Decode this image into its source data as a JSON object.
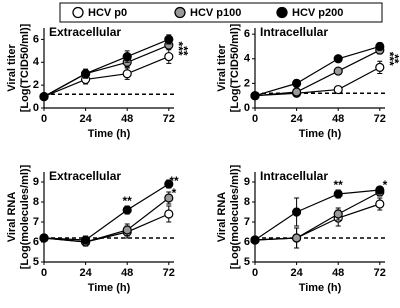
{
  "legend": [
    {
      "name": "HCV p0",
      "color": "#ffffff"
    },
    {
      "name": "HCV p100",
      "color": "#999999"
    },
    {
      "name": "HCV p200",
      "color": "#000000"
    }
  ],
  "chart_data": [
    {
      "type": "line",
      "title": "Extracellular",
      "ylabel": [
        "Viral titer",
        "[Log(TCID50/ml)]"
      ],
      "xlabel": "Time (h)",
      "x": [
        0,
        24,
        48,
        72
      ],
      "xlim": [
        0,
        75
      ],
      "xticks": [
        0,
        24,
        48,
        72
      ],
      "ylim": [
        0,
        7
      ],
      "yticks": [
        0,
        2,
        4,
        6
      ],
      "baseline": 1.2,
      "series": [
        {
          "values": [
            1,
            2.5,
            3,
            4.5
          ],
          "errors": [
            0,
            0.4,
            0.5,
            0.6
          ]
        },
        {
          "values": [
            1,
            3,
            4,
            5.5
          ],
          "errors": [
            0,
            0.3,
            0.4,
            0.3
          ]
        },
        {
          "values": [
            1,
            3,
            4.5,
            6
          ],
          "errors": [
            0,
            0.4,
            0.5,
            0.4
          ]
        }
      ],
      "annotations": [
        {
          "text": "***",
          "x": 77,
          "y": 5.2,
          "rotate": true
        },
        {
          "text": "**",
          "x": 80,
          "y": 5.0,
          "rotate": true
        }
      ]
    },
    {
      "type": "line",
      "title": "Intracellular",
      "ylabel": [
        "Viral titer",
        "[Log(TCID50/ml)]"
      ],
      "xlabel": "Time (h)",
      "x": [
        0,
        24,
        48,
        72
      ],
      "xlim": [
        0,
        75
      ],
      "xticks": [
        0,
        24,
        48,
        72
      ],
      "ylim": [
        0,
        6.5
      ],
      "yticks": [
        0,
        2,
        4,
        6
      ],
      "baseline": 1.2,
      "series": [
        {
          "values": [
            1,
            1.2,
            1.5,
            3.3
          ],
          "errors": [
            0.1,
            0.1,
            0.1,
            0.5
          ]
        },
        {
          "values": [
            1,
            1.3,
            3,
            4.7
          ],
          "errors": [
            0.1,
            0.2,
            0.2,
            0.3
          ]
        },
        {
          "values": [
            1,
            2,
            4,
            5
          ],
          "errors": [
            0.1,
            0.3,
            0.2,
            0.3
          ]
        }
      ],
      "annotations": [
        {
          "text": "***",
          "x": 77,
          "y": 4.0,
          "rotate": true
        },
        {
          "text": "**",
          "x": 80,
          "y": 4.0,
          "rotate": true
        }
      ]
    },
    {
      "type": "line",
      "title": "Extracellular",
      "ylabel": [
        "Viral RNA",
        "[Log(molecules/ml)]"
      ],
      "xlabel": "Time (h)",
      "x": [
        0,
        24,
        48,
        72
      ],
      "xlim": [
        0,
        75
      ],
      "xticks": [
        0,
        24,
        48,
        72
      ],
      "ylim": [
        5,
        9.5
      ],
      "yticks": [
        5,
        6,
        7,
        8,
        9
      ],
      "baseline": 6.2,
      "series": [
        {
          "values": [
            6.2,
            6,
            6.5,
            7.4
          ],
          "errors": [
            0.1,
            0.2,
            0.3,
            0.4
          ]
        },
        {
          "values": [
            6.2,
            6,
            6.6,
            8.2
          ],
          "errors": [
            0.1,
            0.2,
            0.3,
            0.3
          ]
        },
        {
          "values": [
            6.2,
            6.1,
            7.6,
            8.9
          ],
          "errors": [
            0.1,
            0.2,
            0.2,
            0.2
          ]
        }
      ],
      "annotations": [
        {
          "text": "**",
          "x": 48,
          "y": 8.0,
          "rotate": false
        },
        {
          "text": "**",
          "x": 75,
          "y": 9.0,
          "rotate": false
        },
        {
          "text": "*",
          "x": 75,
          "y": 8.4,
          "rotate": false
        }
      ]
    },
    {
      "type": "line",
      "title": "Intracellular",
      "ylabel": [
        "Viral RNA",
        "[Log(molecules/ml)]"
      ],
      "xlabel": "Time (h)",
      "x": [
        0,
        24,
        48,
        72
      ],
      "xlim": [
        0,
        75
      ],
      "xticks": [
        0,
        24,
        48,
        72
      ],
      "ylim": [
        5,
        9.5
      ],
      "yticks": [
        5,
        6,
        7,
        8,
        9
      ],
      "baseline": 6.2,
      "series": [
        {
          "values": [
            6.1,
            6.2,
            7.2,
            7.9
          ],
          "errors": [
            0.1,
            0.5,
            0.4,
            0.3
          ]
        },
        {
          "values": [
            6.1,
            6.2,
            7.4,
            8.5
          ],
          "errors": [
            0.1,
            0.5,
            0.3,
            0.2
          ]
        },
        {
          "values": [
            6.1,
            7.5,
            8.4,
            8.6
          ],
          "errors": [
            0.1,
            0.7,
            0.2,
            0.1
          ]
        }
      ],
      "annotations": [
        {
          "text": "**",
          "x": 48,
          "y": 8.8,
          "rotate": false
        },
        {
          "text": "*",
          "x": 75,
          "y": 8.8,
          "rotate": false
        }
      ]
    }
  ]
}
